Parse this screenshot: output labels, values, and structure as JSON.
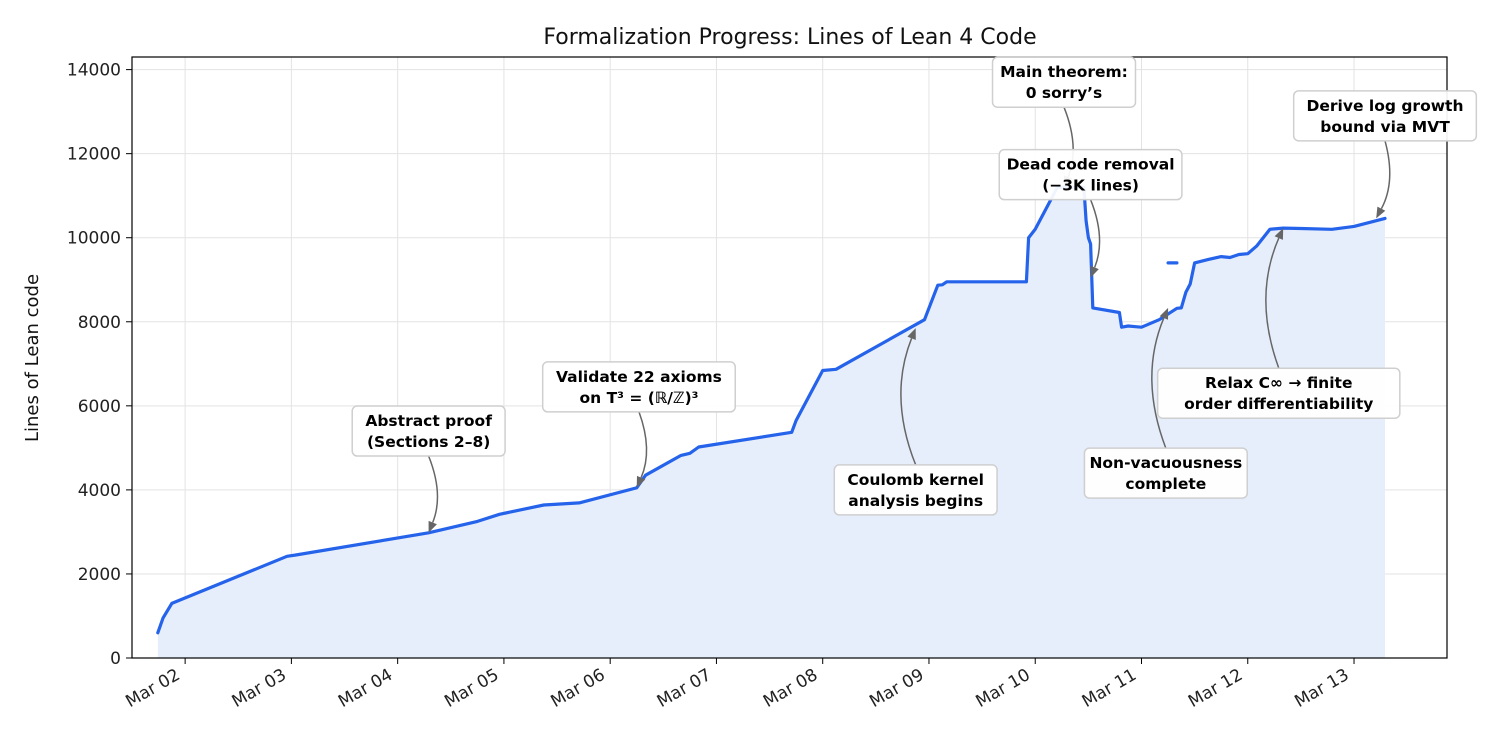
{
  "chart_data": {
    "type": "area",
    "title": "Formalization Progress: Lines of Lean 4 Code",
    "xlabel": "",
    "ylabel": "Lines of Lean code",
    "x_axis": "date",
    "xlim": [
      "2026-03-01T12:00",
      "2026-03-13T21:00"
    ],
    "ylim": [
      0,
      14300
    ],
    "y_ticks": [
      0,
      2000,
      4000,
      6000,
      8000,
      10000,
      12000,
      14000
    ],
    "x_ticks": [
      {
        "date": "2026-03-02",
        "label": "Mar 02"
      },
      {
        "date": "2026-03-03",
        "label": "Mar 03"
      },
      {
        "date": "2026-03-04",
        "label": "Mar 04"
      },
      {
        "date": "2026-03-05",
        "label": "Mar 05"
      },
      {
        "date": "2026-03-06",
        "label": "Mar 06"
      },
      {
        "date": "2026-03-07",
        "label": "Mar 07"
      },
      {
        "date": "2026-03-08",
        "label": "Mar 08"
      },
      {
        "date": "2026-03-09",
        "label": "Mar 09"
      },
      {
        "date": "2026-03-10",
        "label": "Mar 10"
      },
      {
        "date": "2026-03-11",
        "label": "Mar 11"
      },
      {
        "date": "2026-03-12",
        "label": "Mar 12"
      },
      {
        "date": "2026-03-13",
        "label": "Mar 13"
      }
    ],
    "grid": true,
    "line_color": "#2563eb",
    "fill_color": "#e6eefb",
    "annotation_arrow_color": "#666666",
    "series": [
      {
        "points": [
          [
            "2026-03-01T17:50",
            600
          ],
          [
            "2026-03-01T19:00",
            950
          ],
          [
            "2026-03-01T21:00",
            1300
          ],
          [
            "2026-03-02T23:00",
            2420
          ],
          [
            "2026-03-03T01:00",
            2450
          ],
          [
            "2026-03-04T07:00",
            2980
          ],
          [
            "2026-03-04T18:00",
            3250
          ],
          [
            "2026-03-04T23:00",
            3420
          ],
          [
            "2026-03-05T09:00",
            3640
          ],
          [
            "2026-03-05T17:00",
            3690
          ],
          [
            "2026-03-06T06:00",
            4050
          ],
          [
            "2026-03-06T07:00",
            4200
          ],
          [
            "2026-03-06T08:00",
            4350
          ],
          [
            "2026-03-06T16:00",
            4820
          ],
          [
            "2026-03-06T18:00",
            4870
          ],
          [
            "2026-03-06T20:00",
            5020
          ],
          [
            "2026-03-07T17:00",
            5370
          ],
          [
            "2026-03-07T18:00",
            5650
          ],
          [
            "2026-03-08T00:00",
            6840
          ],
          [
            "2026-03-08T03:00",
            6870
          ],
          [
            "2026-03-08T23:00",
            8050
          ],
          [
            "2026-03-09T02:00",
            8870
          ],
          [
            "2026-03-09T03:00",
            8880
          ],
          [
            "2026-03-09T04:00",
            8950
          ],
          [
            "2026-03-09T22:00",
            8950
          ],
          [
            "2026-03-09T22:30",
            10000
          ],
          [
            "2026-03-10T00:00",
            10200
          ],
          [
            "2026-03-10T03:00",
            10800
          ],
          [
            "2026-03-10T05:00",
            11200
          ],
          [
            "2026-03-10T11:00",
            11200
          ],
          [
            "2026-03-10T11:30",
            10400
          ],
          [
            "2026-03-10T12:00",
            10000
          ],
          [
            "2026-03-10T12:30",
            9850
          ],
          [
            "2026-03-10T13:00",
            8330
          ],
          [
            "2026-03-10T19:00",
            8220
          ],
          [
            "2026-03-10T19:30",
            7870
          ],
          [
            "2026-03-10T21:00",
            7900
          ],
          [
            "2026-03-10T23:00",
            7880
          ],
          [
            "2026-03-11T00:00",
            7870
          ],
          [
            "2026-03-11T04:00",
            8050
          ],
          [
            "2026-03-11T08:00",
            8320
          ],
          [
            "2026-03-11T09:00",
            8330
          ],
          [
            "2026-03-11T10:00",
            8700
          ],
          [
            "2026-03-11T11:00",
            8900
          ],
          [
            "2026-03-11T12:00",
            9400
          ],
          [
            "2026-03-11T15:00",
            9480
          ],
          [
            "2026-03-11T18:00",
            9550
          ],
          [
            "2026-03-11T20:00",
            9530
          ],
          [
            "2026-03-11T22:00",
            9600
          ],
          [
            "2026-03-12T00:00",
            9620
          ],
          [
            "2026-03-12T02:00",
            9800
          ],
          [
            "2026-03-12T05:00",
            10200
          ],
          [
            "2026-03-12T08:00",
            10230
          ],
          [
            "2026-03-12T12:00",
            10220
          ],
          [
            "2026-03-12T19:00",
            10200
          ],
          [
            "2026-03-13T00:00",
            10270
          ],
          [
            "2026-03-13T07:00",
            10460
          ]
        ],
        "extra_segments": [
          [
            [
              "2026-03-11T06:00",
              9400
            ],
            [
              "2026-03-11T08:00",
              9400
            ]
          ]
        ]
      }
    ],
    "annotations": [
      {
        "lines": [
          "Abstract proof",
          "(Sections 2–8)"
        ],
        "box_center": [
          "2026-03-04T07:00",
          5400
        ],
        "point": [
          "2026-03-04T07:00",
          2980
        ],
        "rad": 0.2
      },
      {
        "lines": [
          "Validate 22 axioms",
          "on T³ = (ℝ/ℤ)³"
        ],
        "box_center": [
          "2026-03-06T06:30",
          6450
        ],
        "point": [
          "2026-03-06T06:00",
          4050
        ],
        "rad": 0.2
      },
      {
        "lines": [
          "Coulomb kernel",
          "analysis begins"
        ],
        "box_center": [
          "2026-03-08T21:00",
          4000
        ],
        "point": [
          "2026-03-08T21:00",
          7850
        ],
        "rad": 0.2
      },
      {
        "lines": [
          "Main theorem:",
          "0 sorry’s"
        ],
        "box_center": [
          "2026-03-10T06:30",
          13700
        ],
        "point": [
          "2026-03-10T06:30",
          11200
        ],
        "rad": 0.2
      },
      {
        "lines": [
          "Dead code removal",
          "(−3K lines)"
        ],
        "box_center": [
          "2026-03-10T12:30",
          11500
        ],
        "point": [
          "2026-03-10T12:30",
          9050
        ],
        "rad": 0.2
      },
      {
        "lines": [
          "Non-vacuousness",
          "complete"
        ],
        "box_center": [
          "2026-03-11T05:30",
          4400
        ],
        "point": [
          "2026-03-11T06:00",
          8330
        ],
        "rad": 0.2
      },
      {
        "lines": [
          "Relax C∞ → finite",
          "order differentiability"
        ],
        "box_center": [
          "2026-03-12T07:00",
          6300
        ],
        "point": [
          "2026-03-12T08:00",
          10230
        ],
        "rad": 0.2
      },
      {
        "lines": [
          "Derive log growth",
          "bound via MVT"
        ],
        "box_center": [
          "2026-03-13T07:00",
          12900
        ],
        "point": [
          "2026-03-13T05:00",
          10460
        ],
        "rad": 0.2
      }
    ]
  }
}
